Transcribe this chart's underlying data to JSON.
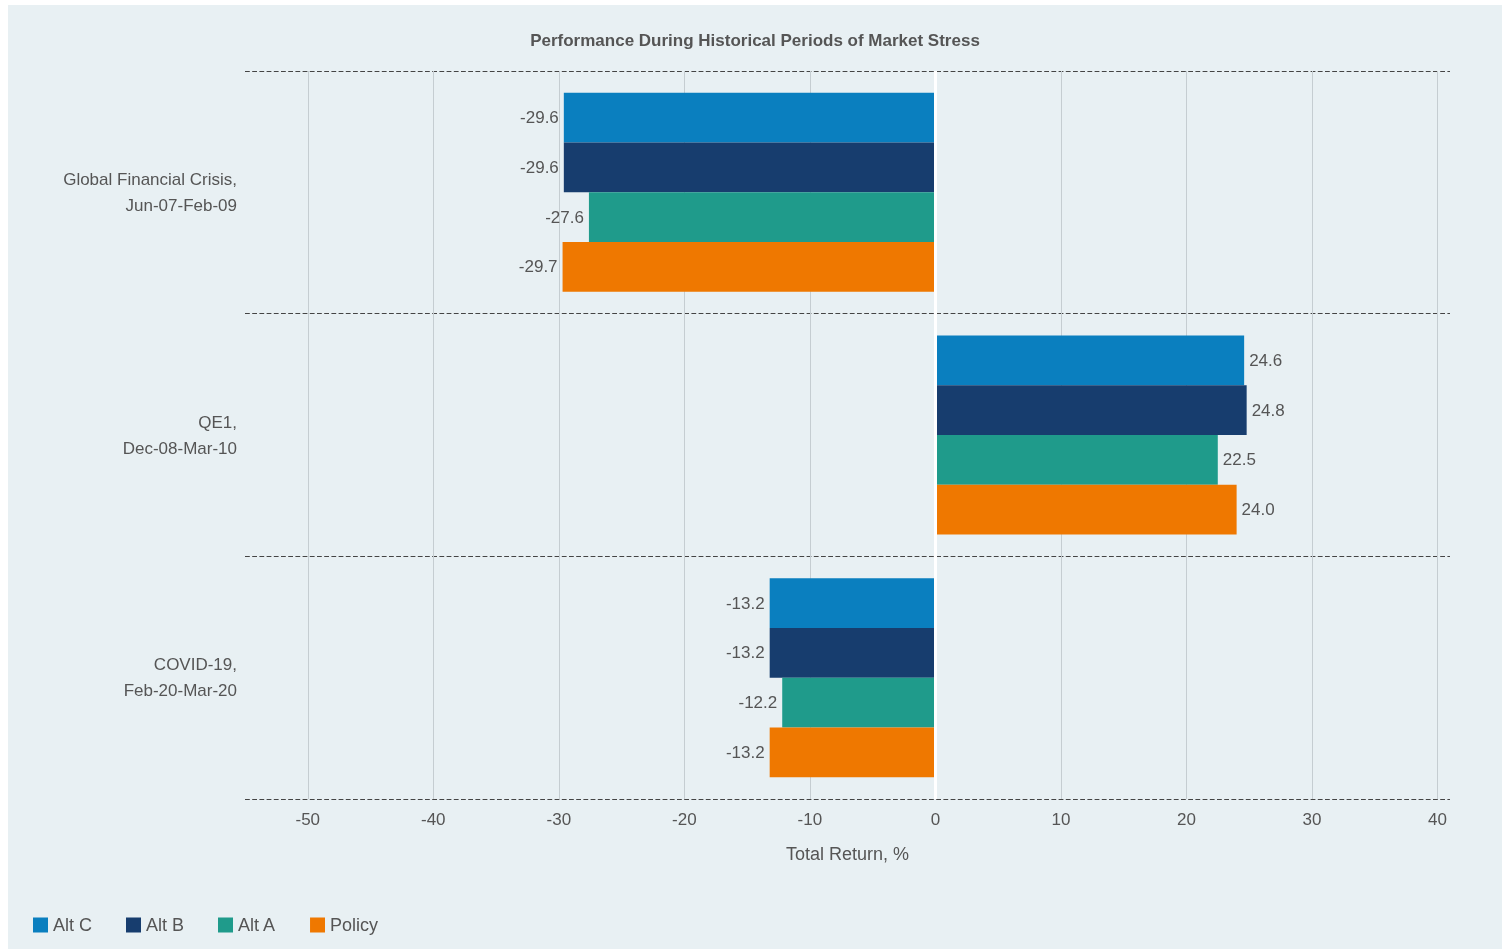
{
  "chart_data": {
    "type": "bar",
    "orientation": "horizontal",
    "title": "Performance During Historical Periods of Market Stress",
    "xlabel": "Total Return, %",
    "categories": [
      "Global Financial Crisis,\nJun-07-Feb-09",
      "QE1,\nDec-08-Mar-10",
      "COVID-19,\nFeb-20-Mar-20"
    ],
    "series": [
      {
        "name": "Alt C",
        "color": "#0a7fbf",
        "values": [
          -29.6,
          24.6,
          -13.2
        ],
        "value_labels": [
          "-29.6",
          "24.6",
          "-13.2"
        ]
      },
      {
        "name": "Alt B",
        "color": "#173d6e",
        "values": [
          -29.6,
          24.8,
          -13.2
        ],
        "value_labels": [
          "-29.6",
          "24.8",
          "-13.2"
        ]
      },
      {
        "name": "Alt A",
        "color": "#1f9b8b",
        "values": [
          -27.6,
          22.5,
          -12.2
        ],
        "value_labels": [
          "-27.6",
          "22.5",
          "-12.2"
        ]
      },
      {
        "name": "Policy",
        "color": "#ef7800",
        "values": [
          -29.7,
          24.0,
          -13.2
        ],
        "value_labels": [
          "-29.7",
          "24.0",
          "-13.2"
        ]
      }
    ],
    "xlim": [
      -55,
      41
    ],
    "xticks": [
      -50,
      -40,
      -30,
      -20,
      -10,
      0,
      10,
      20,
      30,
      40
    ],
    "ref_lines": [
      {
        "axis": "x",
        "value": 0,
        "color": "#ffffff"
      }
    ],
    "grid": "x",
    "legend": "bottom left"
  }
}
